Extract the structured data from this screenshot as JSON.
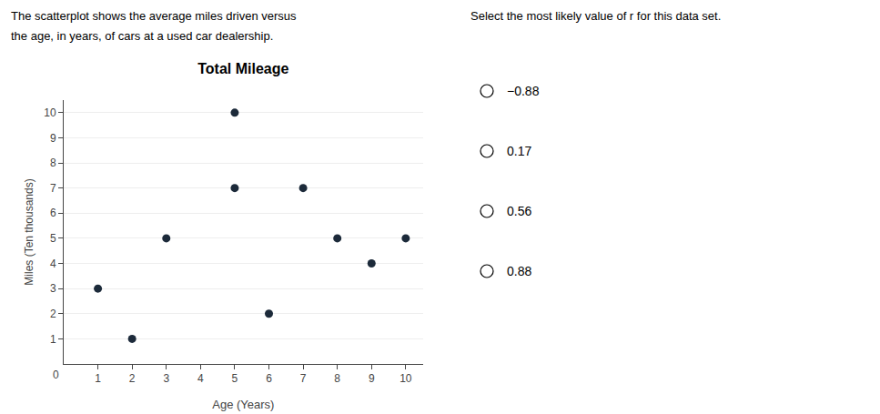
{
  "chart_data": {
    "type": "scatter",
    "title": "Total Mileage",
    "xlabel": "Age (Years)",
    "ylabel": "Miles (Ten thousands)",
    "x": [
      1,
      2,
      3,
      5,
      5,
      6,
      7,
      8,
      9,
      10
    ],
    "values": [
      3,
      1,
      5,
      10,
      7,
      2,
      7,
      5,
      4,
      5
    ],
    "color": "#1c2a3a",
    "marker": "circle",
    "xlim": [
      0,
      10.5
    ],
    "ylim": [
      0,
      10.5
    ],
    "xticks": [
      1,
      2,
      3,
      4,
      5,
      6,
      7,
      8,
      9,
      10
    ],
    "yticks": [
      1,
      2,
      3,
      4,
      5,
      6,
      7,
      8,
      9,
      10
    ],
    "grid": "y",
    "annotations": [
      "The scatterplot shows the average miles driven versus",
      "the age, in years, of cars at a used car dealership.",
      "Select the most likely value of r for this data set.",
      "−0.88",
      "0.17",
      "0.56",
      "0.88",
      "0"
    ]
  }
}
